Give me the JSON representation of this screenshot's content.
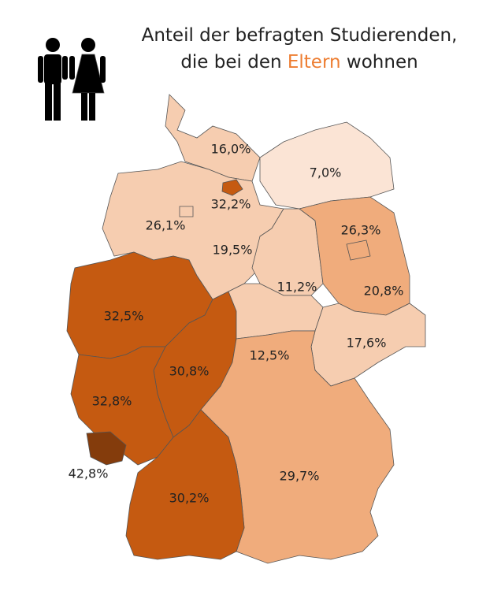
{
  "title": {
    "line1": "Anteil der befragten Studierenden,",
    "line2_before": "die bei den",
    "highlight": "Eltern",
    "line2_after": "wohnen"
  },
  "regions": [
    {
      "label": "16,0%",
      "color": "#f6cdb0"
    },
    {
      "label": "7,0%",
      "color": "#fbe4d5"
    },
    {
      "label": "32,2%",
      "color": "#c55a11"
    },
    {
      "label": "26,1%",
      "color": "#f6cdb0"
    },
    {
      "label": "19,5%",
      "color": "#f6cdb0"
    },
    {
      "label": "26,3%",
      "color": "#f0ac7c"
    },
    {
      "label": "11,2%",
      "color": "#f6cdb0"
    },
    {
      "label": "20,8%",
      "color": "#f0ac7c"
    },
    {
      "label": "32,5%",
      "color": "#c55a11"
    },
    {
      "label": "30,8%",
      "color": "#c55a11"
    },
    {
      "label": "12,5%",
      "color": "#f6cdb0"
    },
    {
      "label": "17,6%",
      "color": "#f6cdb0"
    },
    {
      "label": "32,8%",
      "color": "#c55a11"
    },
    {
      "label": "42,8%",
      "color": "#843c0c"
    },
    {
      "label": "29,7%",
      "color": "#f0ac7c"
    },
    {
      "label": "30,2%",
      "color": "#c55a11"
    }
  ]
}
